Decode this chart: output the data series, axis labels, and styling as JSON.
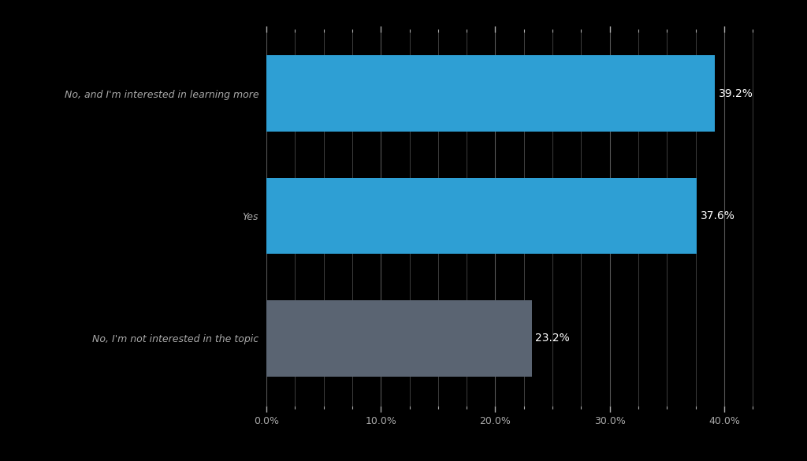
{
  "categories": [
    "No, and I'm interested in learning more",
    "Yes",
    "No, I'm not interested in the topic"
  ],
  "values": [
    39.2,
    37.6,
    23.2
  ],
  "bar_colors": [
    "#2e9fd4",
    "#2e9fd4",
    "#5a6472"
  ],
  "background_color": "#000000",
  "text_color": "#ffffff",
  "label_color": "#aaaaaa",
  "tick_label_color": "#888888",
  "grid_color": "#555555",
  "xlim": [
    0,
    43
  ],
  "xticks": [
    0,
    10,
    20,
    30,
    40
  ],
  "xtick_labels": [
    "0.0%",
    "10.0%",
    "20.0%",
    "30.0%",
    "40.0%"
  ],
  "bar_label_fontsize": 10,
  "ytick_fontsize": 9,
  "xtick_fontsize": 9,
  "bar_height": 0.62,
  "ylim_bottom": -0.55,
  "ylim_top": 2.5
}
